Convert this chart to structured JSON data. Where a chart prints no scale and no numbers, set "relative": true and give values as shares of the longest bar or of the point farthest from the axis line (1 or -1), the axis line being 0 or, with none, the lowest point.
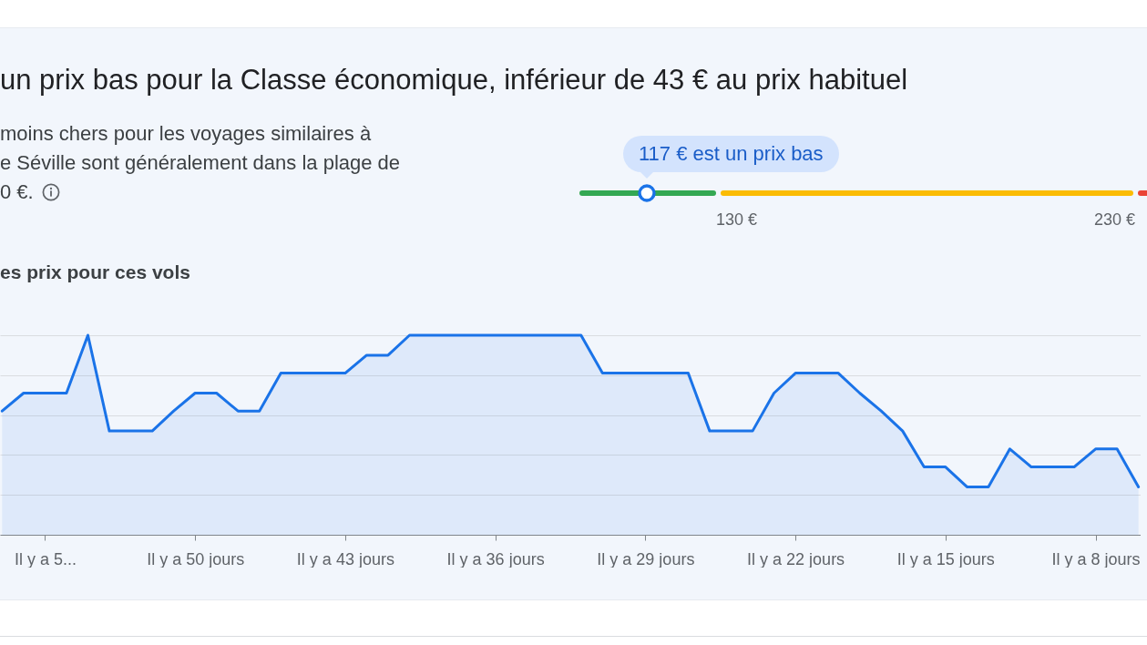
{
  "chart_data": [
    {
      "type": "other",
      "title": "un prix bas pour la Classe économique, inférieur de 43 € au prix habituel",
      "annotations": [
        "moins chers pour les voyages similaires à",
        "e Séville sont généralement dans la plage de",
        "0 €.",
        "117 € est un prix bas",
        "130 €",
        "230 €"
      ]
    },
    {
      "type": "area",
      "title": "es prix pour ces vols",
      "categories": [
        null,
        null,
        "Il y a 5...",
        null,
        null,
        null,
        null,
        null,
        null,
        "Il y a 50 jours",
        null,
        null,
        null,
        null,
        null,
        null,
        "Il y a 43 jours",
        null,
        null,
        null,
        null,
        null,
        null,
        "Il y a 36 jours",
        null,
        null,
        null,
        null,
        null,
        null,
        "Il y a 29 jours",
        null,
        null,
        null,
        null,
        null,
        null,
        "Il y a 22 jours",
        null,
        null,
        null,
        null,
        null,
        null,
        "Il y a 15 jours",
        null,
        null,
        null,
        null,
        null,
        null,
        "Il y a 8 jours",
        null,
        null
      ],
      "relative": true,
      "series": [
        {
          "color": "#1a73e8",
          "values": [
            0.62,
            0.71,
            0.71,
            0.71,
            1,
            0.52,
            0.52,
            0.52,
            0.62,
            0.71,
            0.71,
            0.62,
            0.62,
            0.81,
            0.81,
            0.81,
            0.81,
            0.9,
            0.9,
            1,
            1,
            1,
            1,
            1,
            1,
            1,
            1,
            1,
            0.81,
            0.81,
            0.81,
            0.81,
            0.81,
            0.52,
            0.52,
            0.52,
            0.71,
            0.81,
            0.81,
            0.81,
            0.71,
            0.62,
            0.52,
            0.34,
            0.34,
            0.24,
            0.24,
            0.43,
            0.34,
            0.34,
            0.34,
            0.43,
            0.43,
            0.24
          ]
        }
      ],
      "grid": "y",
      "tick_labels": "x"
    }
  ]
}
